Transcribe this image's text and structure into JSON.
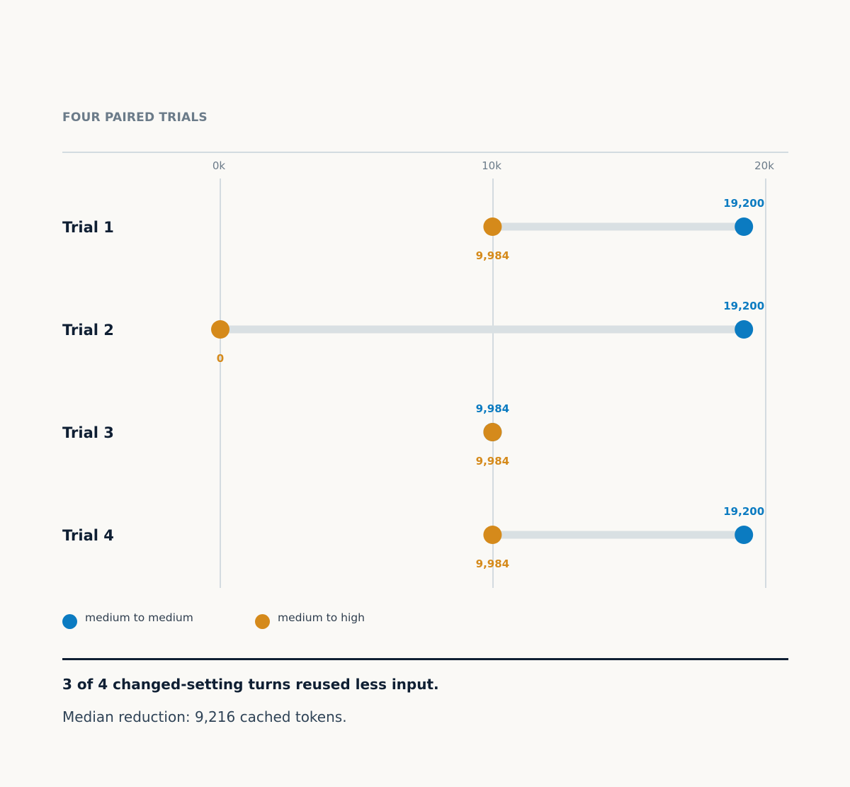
{
  "section_title": "FOUR PAIRED TRIALS",
  "colors": {
    "medium_to_medium": "#0b7bc1",
    "medium_to_high": "#d58a1b",
    "track": "#d9e0e3",
    "gridline": "#d3dbe0",
    "row_label": "#0f1f33",
    "tick": "#6b7b89"
  },
  "legend": [
    {
      "label": "medium to medium",
      "color": "#0b7bc1",
      "icon": "circle-swatch"
    },
    {
      "label": "medium to high",
      "color": "#d58a1b",
      "icon": "circle-swatch"
    }
  ],
  "chart_data": {
    "type": "dumbbell",
    "xlim": [
      0,
      20000
    ],
    "ticks": [
      {
        "value": 0,
        "label": "0k"
      },
      {
        "value": 10000,
        "label": "10k"
      },
      {
        "value": 20000,
        "label": "20k"
      }
    ],
    "grid": true,
    "legend_position": "bottom-left",
    "series": [
      {
        "name": "medium to medium",
        "key": "mm"
      },
      {
        "name": "medium to high",
        "key": "mh"
      }
    ],
    "rows": [
      {
        "label": "Trial 1",
        "mm": 19200,
        "mm_label": "19,200",
        "mh": 9984,
        "mh_label": "9,984"
      },
      {
        "label": "Trial 2",
        "mm": 19200,
        "mm_label": "19,200",
        "mh": 0,
        "mh_label": "0"
      },
      {
        "label": "Trial 3",
        "mm": 9984,
        "mm_label": "9,984",
        "mh": 9984,
        "mh_label": "9,984"
      },
      {
        "label": "Trial 4",
        "mm": 19200,
        "mm_label": "19,200",
        "mh": 9984,
        "mh_label": "9,984"
      }
    ]
  },
  "summary": {
    "takeaway": "3 of 4 changed-setting turns reused less input.",
    "note": "Median reduction: 9,216 cached tokens."
  }
}
